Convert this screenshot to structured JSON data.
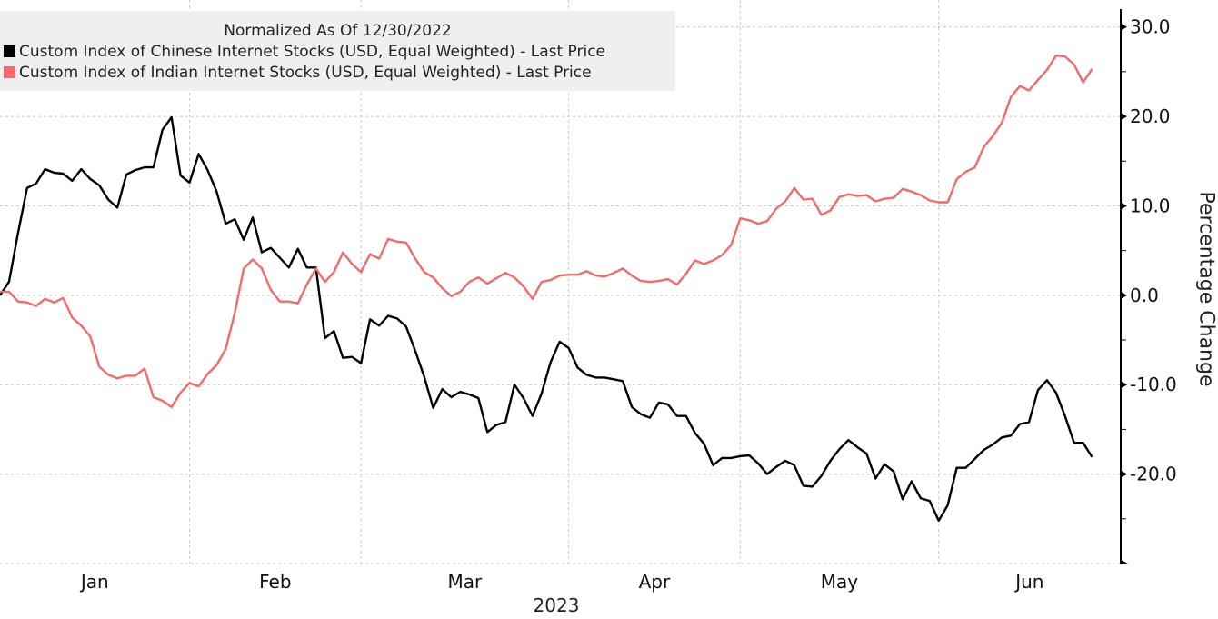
{
  "chart_data": {
    "type": "line",
    "legend_title": "Normalized As Of 12/30/2022",
    "legend_placement": "top-left",
    "ylabel": "Percentage Change",
    "xlabel": "2023",
    "y_axis_side": "right",
    "ylim": [
      -30,
      32
    ],
    "yticks": [
      30,
      20,
      10,
      0,
      -10,
      -20
    ],
    "ytick_labels": [
      "30.0",
      "20.0",
      "10.0",
      "0.0",
      "-10.0",
      "-20.0"
    ],
    "xtick_labels": [
      "Jan",
      "Feb",
      "Mar",
      "Apr",
      "May",
      "Jun"
    ],
    "grid": true,
    "x": [
      "2022-12-30",
      "2023-01-03",
      "2023-01-04",
      "2023-01-05",
      "2023-01-06",
      "2023-01-09",
      "2023-01-10",
      "2023-01-11",
      "2023-01-12",
      "2023-01-13",
      "2023-01-17",
      "2023-01-18",
      "2023-01-19",
      "2023-01-20",
      "2023-01-23",
      "2023-01-24",
      "2023-01-25",
      "2023-01-26",
      "2023-01-27",
      "2023-01-30",
      "2023-01-31",
      "2023-02-01",
      "2023-02-02",
      "2023-02-03",
      "2023-02-06",
      "2023-02-07",
      "2023-02-08",
      "2023-02-09",
      "2023-02-10",
      "2023-02-13",
      "2023-02-14",
      "2023-02-15",
      "2023-02-16",
      "2023-02-17",
      "2023-02-21",
      "2023-02-22",
      "2023-02-23",
      "2023-02-24",
      "2023-02-27",
      "2023-02-28",
      "2023-03-01",
      "2023-03-02",
      "2023-03-03",
      "2023-03-06",
      "2023-03-07",
      "2023-03-08",
      "2023-03-09",
      "2023-03-10",
      "2023-03-13",
      "2023-03-14",
      "2023-03-15",
      "2023-03-16",
      "2023-03-17",
      "2023-03-20",
      "2023-03-21",
      "2023-03-22",
      "2023-03-23",
      "2023-03-24",
      "2023-03-27",
      "2023-03-28",
      "2023-03-29",
      "2023-03-30",
      "2023-03-31",
      "2023-04-03",
      "2023-04-04",
      "2023-04-05",
      "2023-04-06",
      "2023-04-10",
      "2023-04-11",
      "2023-04-12",
      "2023-04-13",
      "2023-04-14",
      "2023-04-17",
      "2023-04-18",
      "2023-04-19",
      "2023-04-20",
      "2023-04-21",
      "2023-04-24",
      "2023-04-25",
      "2023-04-26",
      "2023-04-27",
      "2023-04-28",
      "2023-05-01",
      "2023-05-02",
      "2023-05-03",
      "2023-05-04",
      "2023-05-05",
      "2023-05-08",
      "2023-05-09",
      "2023-05-10",
      "2023-05-11",
      "2023-05-12",
      "2023-05-15",
      "2023-05-16",
      "2023-05-17",
      "2023-05-18",
      "2023-05-19",
      "2023-05-22",
      "2023-05-23",
      "2023-05-24",
      "2023-05-25",
      "2023-05-26",
      "2023-05-30",
      "2023-05-31",
      "2023-06-01",
      "2023-06-02",
      "2023-06-05",
      "2023-06-06",
      "2023-06-07",
      "2023-06-08",
      "2023-06-09",
      "2023-06-12",
      "2023-06-13",
      "2023-06-14",
      "2023-06-15",
      "2023-06-16",
      "2023-06-20",
      "2023-06-21",
      "2023-06-22",
      "2023-06-23",
      "2023-06-26",
      "2023-06-27"
    ],
    "series": [
      {
        "name": "Custom Index of Chinese Internet Stocks (USD, Equal Weighted) - Last Price",
        "color": "#000000",
        "values": [
          0,
          1.5,
          7.0,
          12.0,
          12.5,
          14.1,
          13.7,
          13.6,
          12.8,
          14.1,
          13.0,
          12.3,
          10.7,
          9.8,
          13.5,
          14.0,
          14.3,
          14.3,
          18.5,
          19.9,
          13.4,
          12.6,
          15.8,
          14.0,
          11.6,
          8.0,
          8.5,
          6.2,
          8.7,
          4.8,
          5.3,
          4.2,
          3.1,
          5.2,
          3.1,
          3.1,
          -4.8,
          -4.0,
          -7.0,
          -6.9,
          -7.6,
          -2.7,
          -3.4,
          -2.3,
          -2.6,
          -3.5,
          -6.2,
          -9.1,
          -12.6,
          -10.5,
          -11.4,
          -10.8,
          -11.1,
          -11.5,
          -15.3,
          -14.5,
          -14.2,
          -10.0,
          -11.5,
          -13.5,
          -11.0,
          -7.5,
          -5.2,
          -5.9,
          -8.1,
          -8.9,
          -9.2,
          -9.2,
          -9.4,
          -9.6,
          -12.5,
          -13.3,
          -13.7,
          -12.0,
          -12.2,
          -13.5,
          -13.5,
          -15.4,
          -16.6,
          -19.0,
          -18.2,
          -18.2,
          -18.0,
          -17.9,
          -18.8,
          -20.0,
          -19.2,
          -18.5,
          -19.0,
          -21.3,
          -21.4,
          -20.2,
          -18.5,
          -17.2,
          -16.2,
          -17.0,
          -17.7,
          -20.5,
          -18.9,
          -19.7,
          -22.8,
          -20.8,
          -22.7,
          -23.0,
          -25.2,
          -23.5,
          -19.3,
          -19.3,
          -18.3,
          -17.3,
          -16.7,
          -15.9,
          -15.7,
          -14.4,
          -14.2,
          -10.6,
          -9.5,
          -10.9,
          -13.5,
          -16.5,
          -16.5,
          -18.1
        ]
      },
      {
        "name": "Custom Index of Indian Internet Stocks (USD, Equal Weighted) - Last Price",
        "color": "#f46a6a",
        "values": [
          0.4,
          0.4,
          -0.7,
          -0.8,
          -1.2,
          -0.4,
          -0.8,
          -0.3,
          -2.5,
          -3.4,
          -4.6,
          -8.0,
          -8.9,
          -9.3,
          -9.0,
          -9.0,
          -8.2,
          -11.4,
          -11.8,
          -12.5,
          -10.9,
          -9.8,
          -10.2,
          -8.8,
          -7.8,
          -6.0,
          -2.0,
          3.0,
          4.0,
          3.0,
          0.6,
          -0.7,
          -0.7,
          -0.9,
          1.2,
          3.0,
          1.5,
          2.6,
          4.8,
          3.5,
          2.6,
          4.6,
          4.1,
          6.3,
          6.0,
          5.9,
          4.1,
          2.6,
          2.0,
          0.8,
          -0.1,
          0.4,
          1.5,
          2.0,
          1.3,
          1.9,
          2.5,
          2.0,
          1.0,
          -0.4,
          1.5,
          1.7,
          2.2,
          2.3,
          2.3,
          2.7,
          2.2,
          2.1,
          2.5,
          3.0,
          2.2,
          1.6,
          1.5,
          1.6,
          1.8,
          1.2,
          2.4,
          3.9,
          3.5,
          3.9,
          4.5,
          5.6,
          8.6,
          8.4,
          8.0,
          8.3,
          9.7,
          10.5,
          12.0,
          10.7,
          10.8,
          9.0,
          9.5,
          11.0,
          11.3,
          11.1,
          11.2,
          10.5,
          10.8,
          10.9,
          11.9,
          11.6,
          11.2,
          10.6,
          10.4,
          10.4,
          13.0,
          13.8,
          14.3,
          16.6,
          17.8,
          19.3,
          22.2,
          23.4,
          22.9,
          24.1,
          25.2,
          26.8,
          26.7,
          25.8,
          23.8,
          25.3
        ]
      }
    ]
  }
}
